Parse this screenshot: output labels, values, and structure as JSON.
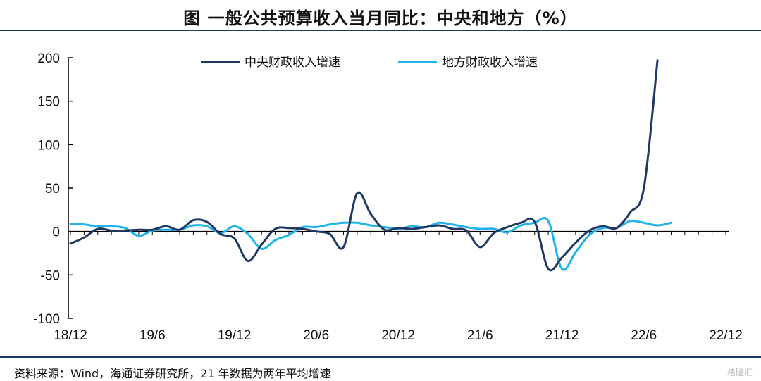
{
  "header": {
    "title": "图  一般公共预算收入当月同比：中央和地方（%）"
  },
  "footer": {
    "source": "资料来源：Wind，海通证券研究所，21 年数据为两年平均增速",
    "watermark": "格隆汇"
  },
  "chart_data": {
    "type": "line",
    "title": "图  一般公共预算收入当月同比：中央和地方（%）",
    "xlabel": "",
    "ylabel": "",
    "ylim": [
      -100,
      200
    ],
    "yticks": [
      200,
      150,
      100,
      50,
      0,
      -50,
      -100
    ],
    "x": [
      "18/12",
      "19/1",
      "19/2",
      "19/3",
      "19/4",
      "19/5",
      "19/6",
      "19/7",
      "19/8",
      "19/9",
      "19/10",
      "19/11",
      "19/12",
      "20/1",
      "20/2",
      "20/3",
      "20/4",
      "20/5",
      "20/6",
      "20/7",
      "20/8",
      "20/9",
      "20/10",
      "20/11",
      "20/12",
      "21/1",
      "21/2",
      "21/3",
      "21/4",
      "21/5",
      "21/6",
      "21/7",
      "21/8",
      "21/9",
      "21/10",
      "21/11",
      "21/12",
      "22/1",
      "22/2",
      "22/3",
      "22/4",
      "22/5",
      "22/6",
      "22/7",
      "22/8",
      "22/9",
      "22/10",
      "22/11",
      "22/12"
    ],
    "xtick_labels": [
      "18/12",
      "19/6",
      "19/12",
      "20/6",
      "20/12",
      "21/6",
      "21/12",
      "22/6",
      "22/12"
    ],
    "grid": false,
    "legend_position": "top",
    "series": [
      {
        "name": "中央财政收入增速",
        "color": "#1f3864",
        "values": [
          -14,
          -7,
          3,
          1,
          1,
          2,
          2,
          6,
          2,
          13,
          11,
          -3,
          -8,
          -34,
          -15,
          3,
          4,
          3,
          0,
          -3,
          -18,
          44,
          20,
          2,
          4,
          3,
          5,
          7,
          3,
          1,
          -18,
          -2,
          5,
          10,
          11,
          -43,
          -30,
          -13,
          1,
          6,
          4,
          22,
          50,
          197,
          null,
          null,
          null,
          null,
          null
        ]
      },
      {
        "name": "地方财政收入增速",
        "color": "#1fb4ea",
        "values": [
          9,
          8,
          6,
          6,
          4,
          -5,
          1,
          2,
          2,
          7,
          6,
          -2,
          6,
          -3,
          -20,
          -10,
          -4,
          5,
          5,
          8,
          10,
          10,
          7,
          5,
          3,
          6,
          5,
          10,
          8,
          5,
          3,
          3,
          -1,
          7,
          10,
          12,
          -43,
          -24,
          -4,
          4,
          4,
          12,
          10,
          7,
          10,
          null,
          null,
          null,
          null
        ]
      }
    ]
  }
}
